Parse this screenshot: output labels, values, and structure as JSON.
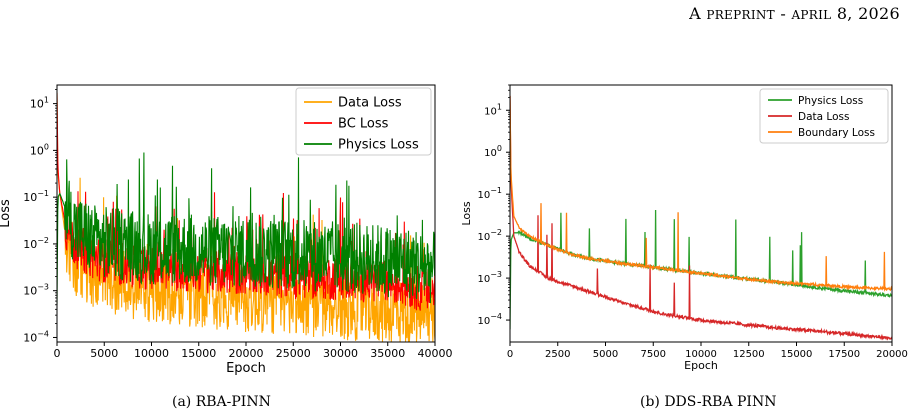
{
  "header": {
    "lead": "A",
    "word1": "PREPRINT",
    "sep": " - ",
    "word2": "APRIL",
    "date_rest": " 8, 2026"
  },
  "captions": {
    "a": "(a) RBA-PINN",
    "b": "(b) DDS-RBA PINN"
  },
  "chart_data": [
    {
      "type": "line",
      "title": "",
      "xlabel": "Epoch",
      "ylabel": "Loss",
      "y_scale": "log",
      "xlim": [
        0,
        40000
      ],
      "ylim": [
        8e-05,
        25
      ],
      "x_ticks": [
        0,
        5000,
        10000,
        15000,
        20000,
        25000,
        30000,
        35000,
        40000
      ],
      "x_tick_labels": [
        "0",
        "5000",
        "10000",
        "15000",
        "20000",
        "25000",
        "30000",
        "35000",
        "40000"
      ],
      "y_tick_labels": [
        "10^-4",
        "10^-3",
        "10^-2",
        "10^-1",
        "10^0",
        "10^1"
      ],
      "legend": "top-right",
      "grid": false,
      "series": [
        {
          "name": "Data Loss",
          "color": "#ffa500",
          "x": [
            0,
            100,
            300,
            1000,
            2000,
            4000,
            6000,
            8000,
            10000,
            13000,
            16000,
            19000,
            22000,
            25000,
            28000,
            31000,
            34000,
            37000,
            40000
          ],
          "values": [
            17,
            0.3,
            0.12,
            0.01,
            0.004,
            0.0022,
            0.0016,
            0.0013,
            0.0011,
            0.0009,
            0.0008,
            0.0007,
            0.0006,
            0.00055,
            0.0005,
            0.00045,
            0.0004,
            0.00035,
            0.0003
          ]
        },
        {
          "name": "BC Loss",
          "color": "#ff0000",
          "x": [
            0,
            100,
            300,
            1000,
            2000,
            4000,
            6000,
            8000,
            10000,
            13000,
            16000,
            19000,
            22000,
            25000,
            28000,
            31000,
            34000,
            37000,
            40000
          ],
          "values": [
            17,
            0.4,
            0.12,
            0.02,
            0.009,
            0.005,
            0.004,
            0.0035,
            0.003,
            0.0028,
            0.0026,
            0.0024,
            0.0022,
            0.002,
            0.0019,
            0.0018,
            0.0016,
            0.0013,
            0.0009
          ]
        },
        {
          "name": "Physics Loss",
          "color": "#008000",
          "x": [
            0,
            100,
            300,
            1000,
            2000,
            4000,
            6000,
            8000,
            10000,
            13000,
            16000,
            19000,
            22000,
            25000,
            28000,
            31000,
            34000,
            37000,
            40000
          ],
          "values": [
            0.0005,
            0.1,
            0.12,
            0.05,
            0.02,
            0.012,
            0.01,
            0.009,
            0.008,
            0.008,
            0.007,
            0.007,
            0.0065,
            0.006,
            0.0055,
            0.005,
            0.0045,
            0.004,
            0.003
          ]
        }
      ]
    },
    {
      "type": "line",
      "title": "",
      "xlabel": "Epoch",
      "ylabel": "Loss",
      "y_scale": "log",
      "xlim": [
        0,
        20000
      ],
      "ylim": [
        3e-05,
        40
      ],
      "x_ticks": [
        0,
        2500,
        5000,
        7500,
        10000,
        12500,
        15000,
        17500,
        20000
      ],
      "x_tick_labels": [
        "0",
        "2500",
        "5000",
        "7500",
        "10000",
        "12500",
        "15000",
        "17500",
        "20000"
      ],
      "y_tick_labels": [
        "10^-4",
        "10^-3",
        "10^-2",
        "10^-1",
        "10^0",
        "10^1"
      ],
      "legend": "top-right",
      "grid": false,
      "series": [
        {
          "name": "Physics Loss",
          "color": "#2ca02c",
          "x": [
            0,
            50,
            200,
            500,
            1000,
            2000,
            3000,
            4000,
            6000,
            8000,
            10000,
            12000,
            14000,
            16000,
            18000,
            20000
          ],
          "values": [
            6e-05,
            0.008,
            0.012,
            0.012,
            0.009,
            0.006,
            0.004,
            0.003,
            0.0022,
            0.0017,
            0.0013,
            0.001,
            0.0008,
            0.0006,
            0.00047,
            0.00038
          ]
        },
        {
          "name": "Data Loss",
          "color": "#d62728",
          "x": [
            0,
            50,
            200,
            500,
            1000,
            2000,
            3000,
            4000,
            6000,
            8000,
            10000,
            12000,
            14000,
            16000,
            18000,
            20000
          ],
          "values": [
            22,
            0.2,
            0.01,
            0.004,
            0.002,
            0.001,
            0.0007,
            0.0005,
            0.00025,
            0.00014,
            0.0001,
            8e-05,
            6.5e-05,
            5.5e-05,
            4.5e-05,
            3.7e-05
          ]
        },
        {
          "name": "Boundary Loss",
          "color": "#ff7f0e",
          "x": [
            0,
            50,
            200,
            500,
            1000,
            2000,
            3000,
            4000,
            6000,
            8000,
            10000,
            12000,
            14000,
            16000,
            18000,
            20000
          ],
          "values": [
            22,
            0.3,
            0.03,
            0.015,
            0.01,
            0.006,
            0.004,
            0.003,
            0.0022,
            0.0017,
            0.0013,
            0.001,
            0.0008,
            0.0007,
            0.0006,
            0.00055
          ]
        }
      ]
    }
  ]
}
